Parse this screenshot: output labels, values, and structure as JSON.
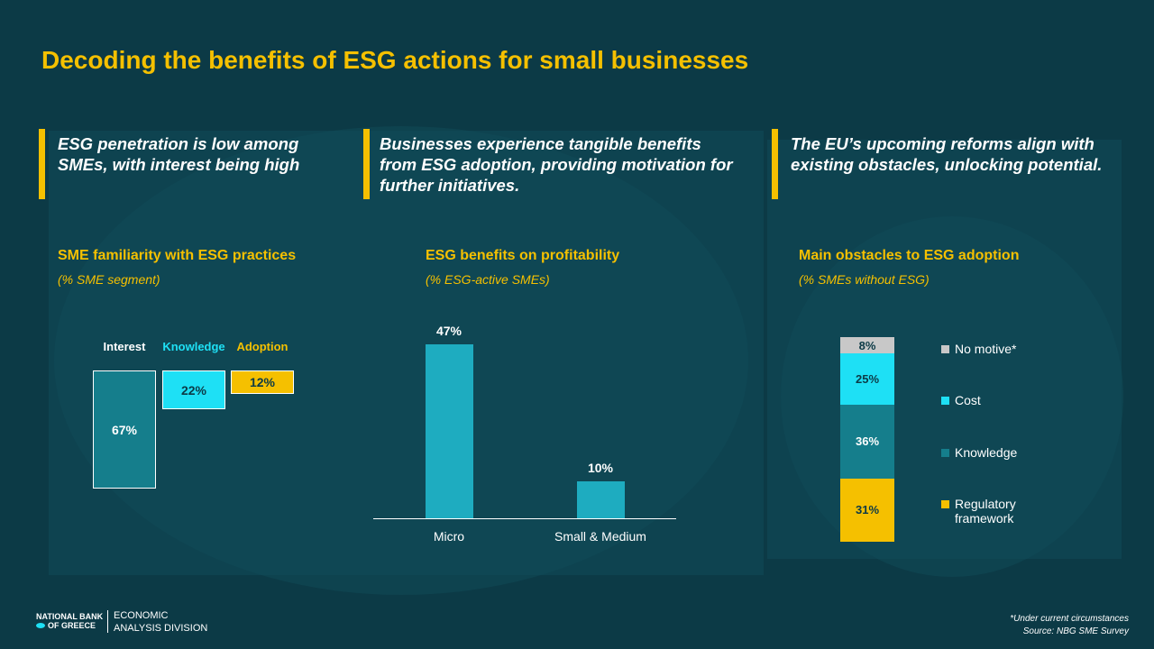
{
  "title": "Decoding the benefits of ESG actions for small businesses",
  "headlines": [
    "ESG penetration is low among SMEs, with interest being high",
    "Businesses experience tangible benefits from ESG adoption, providing motivation for further initiatives.",
    "The EU’s upcoming reforms align with existing obstacles, unlocking potential."
  ],
  "colors": {
    "background": "#0c3a46",
    "accent": "#f5c000",
    "cyan": "#1ee0f5",
    "teal": "#157e8c",
    "bar": "#1eacc0",
    "grey": "#c8c8c8"
  },
  "chart_data": [
    {
      "type": "bar",
      "title": "SME familiarity with ESG practices",
      "subtitle": "(% SME segment)",
      "categories": [
        "Interest",
        "Knowledge",
        "Adoption"
      ],
      "values": [
        67,
        22,
        12
      ],
      "value_labels": [
        "67%",
        "22%",
        "12%"
      ],
      "colors": [
        "#157e8c",
        "#1ee0f5",
        "#f5c000"
      ],
      "label_colors": [
        "#ffffff",
        "#1ee0f5",
        "#f5c000"
      ]
    },
    {
      "type": "bar",
      "title": "ESG benefits on profitability",
      "subtitle": "(% ESG-active SMEs)",
      "categories": [
        "Micro",
        "Small & Medium"
      ],
      "values": [
        47,
        10
      ],
      "value_labels": [
        "47%",
        "10%"
      ],
      "ylim": [
        0,
        47
      ]
    },
    {
      "type": "bar",
      "stacked": true,
      "title": "Main obstacles to ESG adoption",
      "subtitle": "(% SMEs without ESG)",
      "series": [
        {
          "name": "Regulatory framework",
          "value": 31,
          "label": "31%",
          "color": "#f5c000"
        },
        {
          "name": "Knowledge",
          "value": 36,
          "label": "36%",
          "color": "#157e8c"
        },
        {
          "name": "Cost",
          "value": 25,
          "label": "25%",
          "color": "#1ee0f5"
        },
        {
          "name": "No motive*",
          "value": 8,
          "label": "8%",
          "color": "#c8c8c8"
        }
      ],
      "legend_order": [
        "No motive*",
        "Cost",
        "Knowledge",
        "Regulatory framework"
      ]
    }
  ],
  "footer": {
    "logo_line1": "NATIONAL BANK",
    "logo_line2": "OF GREECE",
    "division_line1": "ECONOMIC",
    "division_line2": "ANALYSIS DIVISION",
    "footnote": "*Under current circumstances",
    "source": "Source: NBG SME Survey"
  }
}
